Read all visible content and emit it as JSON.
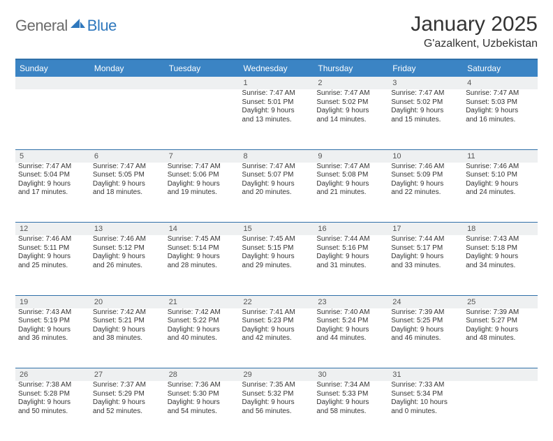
{
  "logo": {
    "part1": "General",
    "part2": "Blue"
  },
  "title": "January 2025",
  "location": "G'azalkent, Uzbekistan",
  "colors": {
    "header_bg": "#3b84c4",
    "header_border": "#2f6fa8",
    "daynum_bg": "#eef0f1",
    "logo_gray": "#6a6a6a",
    "logo_blue": "#2f78bd"
  },
  "day_names": [
    "Sunday",
    "Monday",
    "Tuesday",
    "Wednesday",
    "Thursday",
    "Friday",
    "Saturday"
  ],
  "weeks": [
    [
      {
        "n": "",
        "sr": "",
        "ss": "",
        "d1": "",
        "d2": ""
      },
      {
        "n": "",
        "sr": "",
        "ss": "",
        "d1": "",
        "d2": ""
      },
      {
        "n": "",
        "sr": "",
        "ss": "",
        "d1": "",
        "d2": ""
      },
      {
        "n": "1",
        "sr": "Sunrise: 7:47 AM",
        "ss": "Sunset: 5:01 PM",
        "d1": "Daylight: 9 hours",
        "d2": "and 13 minutes."
      },
      {
        "n": "2",
        "sr": "Sunrise: 7:47 AM",
        "ss": "Sunset: 5:02 PM",
        "d1": "Daylight: 9 hours",
        "d2": "and 14 minutes."
      },
      {
        "n": "3",
        "sr": "Sunrise: 7:47 AM",
        "ss": "Sunset: 5:02 PM",
        "d1": "Daylight: 9 hours",
        "d2": "and 15 minutes."
      },
      {
        "n": "4",
        "sr": "Sunrise: 7:47 AM",
        "ss": "Sunset: 5:03 PM",
        "d1": "Daylight: 9 hours",
        "d2": "and 16 minutes."
      }
    ],
    [
      {
        "n": "5",
        "sr": "Sunrise: 7:47 AM",
        "ss": "Sunset: 5:04 PM",
        "d1": "Daylight: 9 hours",
        "d2": "and 17 minutes."
      },
      {
        "n": "6",
        "sr": "Sunrise: 7:47 AM",
        "ss": "Sunset: 5:05 PM",
        "d1": "Daylight: 9 hours",
        "d2": "and 18 minutes."
      },
      {
        "n": "7",
        "sr": "Sunrise: 7:47 AM",
        "ss": "Sunset: 5:06 PM",
        "d1": "Daylight: 9 hours",
        "d2": "and 19 minutes."
      },
      {
        "n": "8",
        "sr": "Sunrise: 7:47 AM",
        "ss": "Sunset: 5:07 PM",
        "d1": "Daylight: 9 hours",
        "d2": "and 20 minutes."
      },
      {
        "n": "9",
        "sr": "Sunrise: 7:47 AM",
        "ss": "Sunset: 5:08 PM",
        "d1": "Daylight: 9 hours",
        "d2": "and 21 minutes."
      },
      {
        "n": "10",
        "sr": "Sunrise: 7:46 AM",
        "ss": "Sunset: 5:09 PM",
        "d1": "Daylight: 9 hours",
        "d2": "and 22 minutes."
      },
      {
        "n": "11",
        "sr": "Sunrise: 7:46 AM",
        "ss": "Sunset: 5:10 PM",
        "d1": "Daylight: 9 hours",
        "d2": "and 24 minutes."
      }
    ],
    [
      {
        "n": "12",
        "sr": "Sunrise: 7:46 AM",
        "ss": "Sunset: 5:11 PM",
        "d1": "Daylight: 9 hours",
        "d2": "and 25 minutes."
      },
      {
        "n": "13",
        "sr": "Sunrise: 7:46 AM",
        "ss": "Sunset: 5:12 PM",
        "d1": "Daylight: 9 hours",
        "d2": "and 26 minutes."
      },
      {
        "n": "14",
        "sr": "Sunrise: 7:45 AM",
        "ss": "Sunset: 5:14 PM",
        "d1": "Daylight: 9 hours",
        "d2": "and 28 minutes."
      },
      {
        "n": "15",
        "sr": "Sunrise: 7:45 AM",
        "ss": "Sunset: 5:15 PM",
        "d1": "Daylight: 9 hours",
        "d2": "and 29 minutes."
      },
      {
        "n": "16",
        "sr": "Sunrise: 7:44 AM",
        "ss": "Sunset: 5:16 PM",
        "d1": "Daylight: 9 hours",
        "d2": "and 31 minutes."
      },
      {
        "n": "17",
        "sr": "Sunrise: 7:44 AM",
        "ss": "Sunset: 5:17 PM",
        "d1": "Daylight: 9 hours",
        "d2": "and 33 minutes."
      },
      {
        "n": "18",
        "sr": "Sunrise: 7:43 AM",
        "ss": "Sunset: 5:18 PM",
        "d1": "Daylight: 9 hours",
        "d2": "and 34 minutes."
      }
    ],
    [
      {
        "n": "19",
        "sr": "Sunrise: 7:43 AM",
        "ss": "Sunset: 5:19 PM",
        "d1": "Daylight: 9 hours",
        "d2": "and 36 minutes."
      },
      {
        "n": "20",
        "sr": "Sunrise: 7:42 AM",
        "ss": "Sunset: 5:21 PM",
        "d1": "Daylight: 9 hours",
        "d2": "and 38 minutes."
      },
      {
        "n": "21",
        "sr": "Sunrise: 7:42 AM",
        "ss": "Sunset: 5:22 PM",
        "d1": "Daylight: 9 hours",
        "d2": "and 40 minutes."
      },
      {
        "n": "22",
        "sr": "Sunrise: 7:41 AM",
        "ss": "Sunset: 5:23 PM",
        "d1": "Daylight: 9 hours",
        "d2": "and 42 minutes."
      },
      {
        "n": "23",
        "sr": "Sunrise: 7:40 AM",
        "ss": "Sunset: 5:24 PM",
        "d1": "Daylight: 9 hours",
        "d2": "and 44 minutes."
      },
      {
        "n": "24",
        "sr": "Sunrise: 7:39 AM",
        "ss": "Sunset: 5:25 PM",
        "d1": "Daylight: 9 hours",
        "d2": "and 46 minutes."
      },
      {
        "n": "25",
        "sr": "Sunrise: 7:39 AM",
        "ss": "Sunset: 5:27 PM",
        "d1": "Daylight: 9 hours",
        "d2": "and 48 minutes."
      }
    ],
    [
      {
        "n": "26",
        "sr": "Sunrise: 7:38 AM",
        "ss": "Sunset: 5:28 PM",
        "d1": "Daylight: 9 hours",
        "d2": "and 50 minutes."
      },
      {
        "n": "27",
        "sr": "Sunrise: 7:37 AM",
        "ss": "Sunset: 5:29 PM",
        "d1": "Daylight: 9 hours",
        "d2": "and 52 minutes."
      },
      {
        "n": "28",
        "sr": "Sunrise: 7:36 AM",
        "ss": "Sunset: 5:30 PM",
        "d1": "Daylight: 9 hours",
        "d2": "and 54 minutes."
      },
      {
        "n": "29",
        "sr": "Sunrise: 7:35 AM",
        "ss": "Sunset: 5:32 PM",
        "d1": "Daylight: 9 hours",
        "d2": "and 56 minutes."
      },
      {
        "n": "30",
        "sr": "Sunrise: 7:34 AM",
        "ss": "Sunset: 5:33 PM",
        "d1": "Daylight: 9 hours",
        "d2": "and 58 minutes."
      },
      {
        "n": "31",
        "sr": "Sunrise: 7:33 AM",
        "ss": "Sunset: 5:34 PM",
        "d1": "Daylight: 10 hours",
        "d2": "and 0 minutes."
      },
      {
        "n": "",
        "sr": "",
        "ss": "",
        "d1": "",
        "d2": ""
      }
    ]
  ]
}
